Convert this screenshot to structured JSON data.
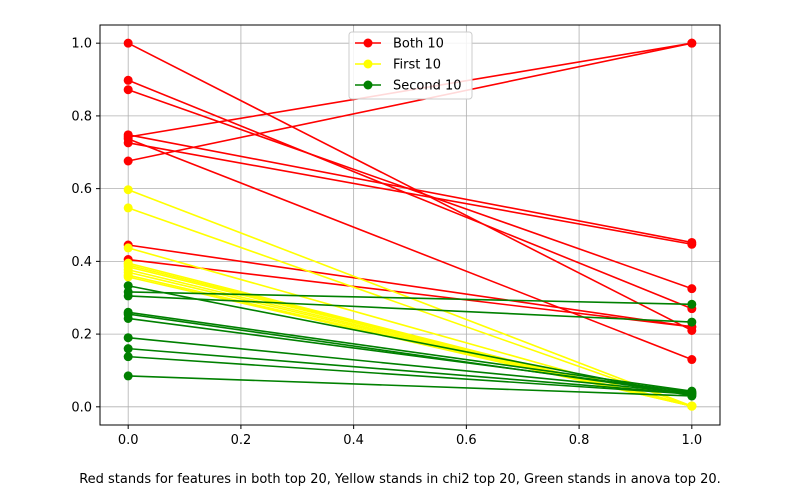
{
  "chart_data": {
    "type": "line",
    "title": "",
    "xlabel": "",
    "ylabel": "",
    "xlim": [
      -0.05,
      1.05
    ],
    "ylim": [
      -0.05,
      1.05
    ],
    "xticks": [
      0.0,
      0.2,
      0.4,
      0.6,
      0.8,
      1.0
    ],
    "xtick_labels": [
      "0.0",
      "0.2",
      "0.4",
      "0.6",
      "0.8",
      "1.0"
    ],
    "yticks": [
      0.0,
      0.2,
      0.4,
      0.6,
      0.8,
      1.0
    ],
    "ytick_labels": [
      "0.0",
      "0.2",
      "0.4",
      "0.6",
      "0.8",
      "1.0"
    ],
    "grid": true,
    "legend": {
      "placement": "top-center",
      "entries": [
        {
          "label": "Both 10",
          "color": "#ff0000"
        },
        {
          "label": "First 10",
          "color": "#ffff00"
        },
        {
          "label": "Second 10",
          "color": "#008000"
        }
      ]
    },
    "caption": "Red stands for features in both top 20, Yellow stands in chi2 top 20, Green stands in anova top 20.",
    "groups": [
      {
        "name": "Both 10",
        "color": "#ff0000",
        "x": [
          0,
          1
        ],
        "lines": [
          [
            1.0,
            0.21
          ],
          [
            0.898,
            0.27
          ],
          [
            0.872,
            0.325
          ],
          [
            0.748,
            0.452
          ],
          [
            0.742,
            1.0
          ],
          [
            0.737,
            0.13
          ],
          [
            0.726,
            0.447
          ],
          [
            0.676,
            1.0
          ],
          [
            0.445,
            0.22
          ],
          [
            0.405,
            0.22
          ]
        ]
      },
      {
        "name": "First 10",
        "color": "#ffff00",
        "x": [
          0,
          1
        ],
        "lines": [
          [
            0.597,
            0.002
          ],
          [
            0.547,
            0.002
          ],
          [
            0.437,
            0.002
          ],
          [
            0.395,
            0.002
          ],
          [
            0.39,
            0.002
          ],
          [
            0.385,
            0.002
          ],
          [
            0.377,
            0.002
          ],
          [
            0.37,
            0.002
          ],
          [
            0.362,
            0.002
          ],
          [
            0.357,
            0.002
          ]
        ]
      },
      {
        "name": "Second 10",
        "color": "#008000",
        "x": [
          0,
          1
        ],
        "lines": [
          [
            0.333,
            0.03
          ],
          [
            0.316,
            0.282
          ],
          [
            0.305,
            0.233
          ],
          [
            0.26,
            0.043
          ],
          [
            0.255,
            0.035
          ],
          [
            0.243,
            0.04
          ],
          [
            0.19,
            0.038
          ],
          [
            0.16,
            0.036
          ],
          [
            0.138,
            0.035
          ],
          [
            0.085,
            0.03
          ]
        ]
      }
    ]
  }
}
